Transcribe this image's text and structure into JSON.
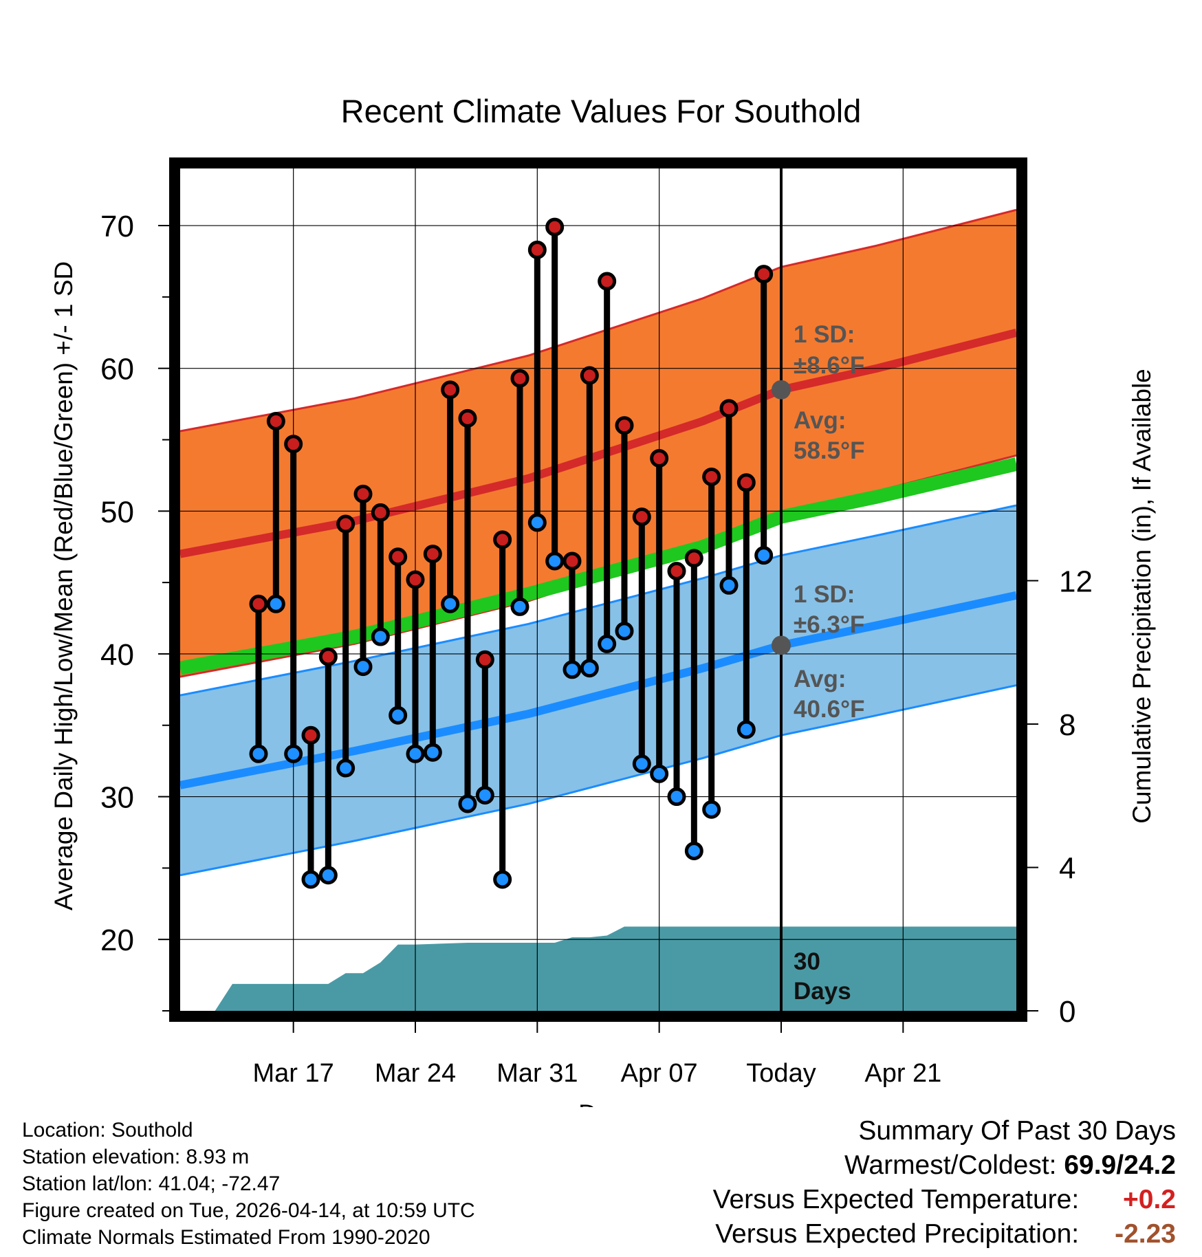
{
  "chart_data": {
    "type": "line",
    "title": "Recent Climate Values For Southold",
    "xlabel": "Day",
    "ylabel": "Average Daily High/Low/Mean (Red/Blue/Green) +/- 1 SD",
    "y2label": "Cumulative Precipitation (in), If Available",
    "ylim": [
      15,
      74
    ],
    "y_ticks": [
      20,
      30,
      40,
      50,
      60,
      70
    ],
    "y2lim": [
      0,
      23.5
    ],
    "y2_ticks": [
      0,
      4,
      8,
      12
    ],
    "xlim_days": [
      -34.5,
      13.5
    ],
    "x_ticks": [
      {
        "day": -28,
        "label": "Mar 17"
      },
      {
        "day": -21,
        "label": "Mar 24"
      },
      {
        "day": -14,
        "label": "Mar 31"
      },
      {
        "day": -7,
        "label": "Apr 07"
      },
      {
        "day": 0,
        "label": "Today"
      },
      {
        "day": 7,
        "label": "Apr 21"
      }
    ],
    "days": [
      -30,
      -29,
      -28,
      -27,
      -26,
      -25,
      -24,
      -23,
      -22,
      -21,
      -20,
      -19,
      -18,
      -17,
      -16,
      -15,
      -14,
      -13,
      -12,
      -11,
      -10,
      -9,
      -8,
      -7,
      -6,
      -5,
      -4,
      -3,
      -2,
      -1
    ],
    "daily_high": [
      43.5,
      56.3,
      54.7,
      34.3,
      39.8,
      49.1,
      51.2,
      49.9,
      46.8,
      45.2,
      47.0,
      58.5,
      56.5,
      39.6,
      48.0,
      59.3,
      68.3,
      69.9,
      46.5,
      59.5,
      66.1,
      56.0,
      49.6,
      53.7,
      45.8,
      46.7,
      52.4,
      57.2,
      52.0,
      66.6
    ],
    "daily_low": [
      33.0,
      43.5,
      33.0,
      24.2,
      24.5,
      32.0,
      39.1,
      41.2,
      35.7,
      33.0,
      33.1,
      43.5,
      29.5,
      30.1,
      24.2,
      43.3,
      49.2,
      46.5,
      38.9,
      39.0,
      40.7,
      41.6,
      32.3,
      31.6,
      30.0,
      26.2,
      29.1,
      44.8,
      34.7,
      46.9
    ],
    "normal_high_line": {
      "days": [
        -34.5,
        -24.5,
        -14.5,
        -4.5,
        0,
        5.5,
        13.5
      ],
      "values": [
        47.0,
        49.3,
        52.3,
        56.3,
        58.5,
        60.0,
        62.5
      ]
    },
    "normal_high_sd": 8.6,
    "normal_low_line": {
      "days": [
        -34.5,
        -24.5,
        -14.5,
        -4.5,
        0,
        5.5,
        13.5
      ],
      "values": [
        30.8,
        33.2,
        35.8,
        39.0,
        40.6,
        42.0,
        44.1
      ]
    },
    "normal_low_sd": 6.3,
    "normal_mean_line": {
      "days": [
        -34.5,
        -24.5,
        -14.5,
        -4.5,
        0,
        5.5,
        13.5
      ],
      "values": [
        39.0,
        41.2,
        44.2,
        47.5,
        49.6,
        51.0,
        53.3
      ]
    },
    "cumulative_precip": {
      "days": [
        -32.5,
        -31.5,
        -29.5,
        -26,
        -25,
        -24,
        -23,
        -22,
        -21,
        -18,
        -17,
        -14,
        -13,
        -12,
        -11,
        -10,
        -9,
        -8,
        -7,
        -6,
        -5,
        13.5
      ],
      "values": [
        0,
        0.75,
        0.75,
        0.75,
        1.05,
        1.05,
        1.35,
        1.85,
        1.85,
        1.9,
        1.9,
        1.9,
        1.9,
        2.05,
        2.05,
        2.1,
        2.35,
        2.35,
        2.35,
        2.35,
        2.35,
        2.35
      ]
    },
    "annotations": {
      "high_sd": "1 SD:",
      "high_sd_val": "±8.6°F",
      "high_avg": "Avg:",
      "high_avg_val": "58.5°F",
      "low_sd": "1 SD:",
      "low_sd_val": "±6.3°F",
      "low_avg": "Avg:",
      "low_avg_val": "40.6°F",
      "precip_days_1": "30",
      "precip_days_2": "Days"
    },
    "colors": {
      "high_band": "#f47a30",
      "high_line": "#d42a2a",
      "low_band": "#87c1e8",
      "low_line": "#1a8cff",
      "mean_line": "#1ec81e",
      "precip": "#4a9aa5",
      "high_dot": "#c81e1e",
      "low_dot": "#1e90ff",
      "annotation": "#555555"
    }
  },
  "station": {
    "location": "Location: Southold",
    "elevation": "Station elevation: 8.93 m",
    "latlon": "Station lat/lon: 41.04; -72.47",
    "created": "Figure created on Tue, 2026-04-14, at 10:59 UTC",
    "normals": "Climate Normals Estimated From 1990-2020"
  },
  "summary": {
    "title": "Summary Of Past 30 Days",
    "warm_cold_label": "Warmest/Coldest:",
    "warm_cold_value": "69.9/24.2",
    "temp_label": "Versus Expected Temperature:",
    "temp_value": "+0.2",
    "precip_label": "Versus Expected Precipitation:",
    "precip_value": "-2.23",
    "temp_color": "#d42020",
    "precip_color": "#a0522d"
  }
}
